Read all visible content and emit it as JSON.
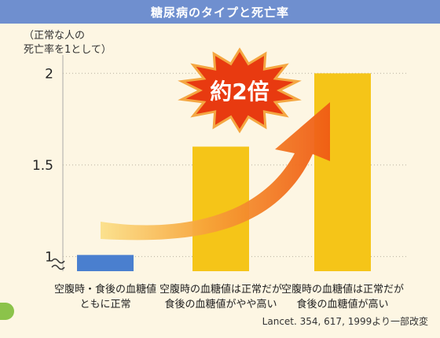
{
  "title": "糖尿病のタイプと死亡率",
  "ylabel": "（正常な人の\n死亡率を1として）",
  "annotation": "約2倍",
  "source": "Lancet. 354, 617, 1999より一部改変",
  "colors": {
    "title_bar": "#6f8fcf",
    "background": "#fdf6e3",
    "bar_normal": "#4a7fcf",
    "bar_elevated": "#f5c518",
    "arrow": "#f07a1e",
    "starburst": "#e83a10"
  },
  "chart_data": {
    "type": "bar",
    "title": "糖尿病のタイプと死亡率",
    "ylabel": "（正常な人の死亡率を1として）",
    "ylim": [
      1,
      2.1
    ],
    "yticks": [
      "1",
      "1.5",
      "2"
    ],
    "ytick_values": [
      1,
      1.5,
      2
    ],
    "axis_break": true,
    "grid": true,
    "categories": [
      [
        "空腹時・食後の血糖値",
        "ともに正常"
      ],
      [
        "空腹時の血糖値は正常だが",
        "食後の血糖値がやや高い"
      ],
      [
        "空腹時の血糖値は正常だが",
        "食後の血糖値が高い"
      ]
    ],
    "values": [
      1.0,
      1.6,
      2.0
    ],
    "bar_colors": [
      "#4a7fcf",
      "#f5c518",
      "#f5c518"
    ]
  }
}
